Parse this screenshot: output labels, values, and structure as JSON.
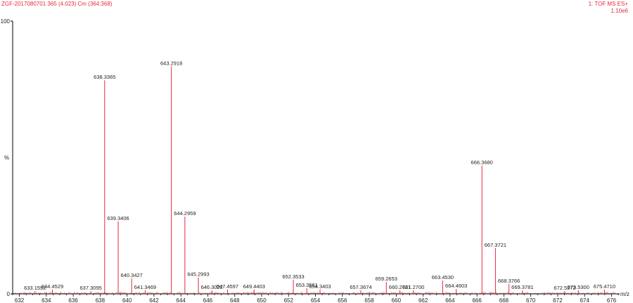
{
  "header": {
    "sample": "ZGF-2017080701 365 (4.023) Cm (364:368)",
    "function": "1: TOF MS ES+",
    "intensity": "1.10e6"
  },
  "colors": {
    "peak": "#e8283a",
    "axis": "#000000",
    "text": "#222222"
  },
  "chart_data": {
    "type": "bar",
    "xlabel": "m/z",
    "ylabel": "%",
    "xlim": [
      631.5,
      676.6
    ],
    "ylim": [
      0,
      100
    ],
    "xticks": [
      632,
      634,
      636,
      638,
      640,
      642,
      644,
      646,
      648,
      650,
      652,
      654,
      656,
      658,
      660,
      662,
      664,
      666,
      668,
      670,
      672,
      674,
      676
    ],
    "yticks": [
      0,
      100
    ],
    "peaks": [
      {
        "mz": 633.1592,
        "intensity": 1.0,
        "label": "633.1592"
      },
      {
        "mz": 634.4529,
        "intensity": 1.6,
        "label": "634.4529"
      },
      {
        "mz": 637.3095,
        "intensity": 1.0,
        "label": "637.3095"
      },
      {
        "mz": 638.3365,
        "intensity": 78.3,
        "label": "638.3365"
      },
      {
        "mz": 639.3406,
        "intensity": 26.6,
        "label": "639.3406"
      },
      {
        "mz": 640.3427,
        "intensity": 5.7,
        "label": "640.3427"
      },
      {
        "mz": 641.3469,
        "intensity": 1.3,
        "label": "641.3469"
      },
      {
        "mz": 643.2918,
        "intensity": 83.4,
        "label": "643.2918"
      },
      {
        "mz": 644.2959,
        "intensity": 28.3,
        "label": "644.2959"
      },
      {
        "mz": 645.2993,
        "intensity": 6.0,
        "label": "645.2993"
      },
      {
        "mz": 646.3022,
        "intensity": 1.3,
        "label": "646.3022"
      },
      {
        "mz": 647.4597,
        "intensity": 1.6,
        "label": "647.4597"
      },
      {
        "mz": 649.4403,
        "intensity": 1.6,
        "label": "649.4403"
      },
      {
        "mz": 652.3533,
        "intensity": 5.2,
        "label": "652.3533"
      },
      {
        "mz": 653.3561,
        "intensity": 2.1,
        "label": "653.3561"
      },
      {
        "mz": 654.3403,
        "intensity": 1.6,
        "label": "654.3403"
      },
      {
        "mz": 657.3674,
        "intensity": 1.3,
        "label": "657.3674"
      },
      {
        "mz": 659.2653,
        "intensity": 4.4,
        "label": "659.2653"
      },
      {
        "mz": 660.2721,
        "intensity": 1.3,
        "label": "660.2721"
      },
      {
        "mz": 661.27,
        "intensity": 1.3,
        "label": "661.2700"
      },
      {
        "mz": 663.453,
        "intensity": 4.9,
        "label": "663.4530"
      },
      {
        "mz": 664.4603,
        "intensity": 1.8,
        "label": "664.4603"
      },
      {
        "mz": 666.368,
        "intensity": 47.0,
        "label": "666.3680"
      },
      {
        "mz": 667.3721,
        "intensity": 16.8,
        "label": "667.3721"
      },
      {
        "mz": 668.3766,
        "intensity": 3.6,
        "label": "668.3766"
      },
      {
        "mz": 669.3781,
        "intensity": 1.3,
        "label": "669.3781"
      },
      {
        "mz": 672.5272,
        "intensity": 1.0,
        "label": "672.5272"
      },
      {
        "mz": 673.53,
        "intensity": 1.3,
        "label": "673.5300"
      },
      {
        "mz": 675.471,
        "intensity": 1.6,
        "label": "675.4710"
      }
    ]
  }
}
